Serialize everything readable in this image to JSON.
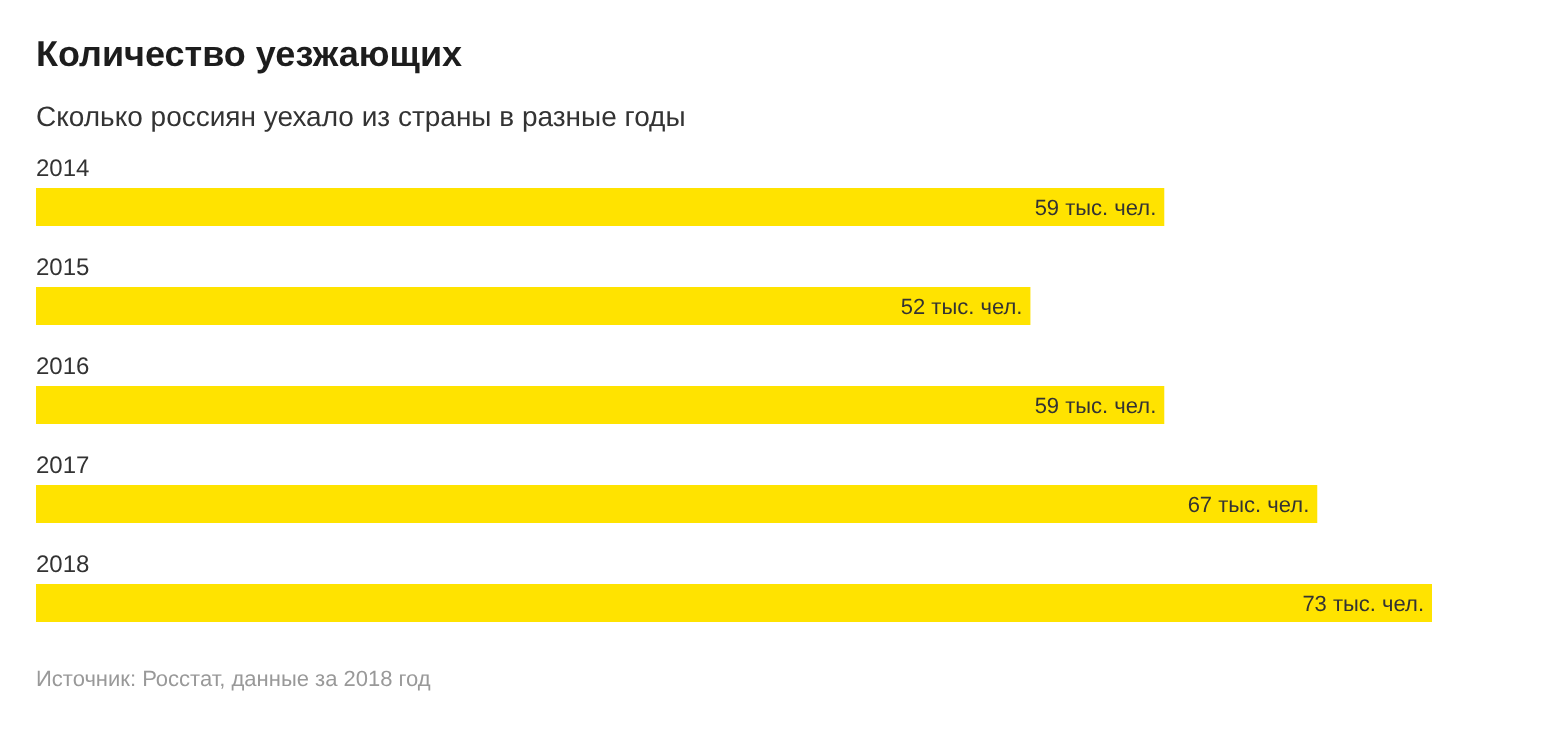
{
  "chart_data": {
    "type": "bar",
    "orientation": "horizontal",
    "title": "Количество уезжающих",
    "subtitle": "Сколько россиян уехало из страны в разные годы",
    "categories": [
      "2014",
      "2015",
      "2016",
      "2017",
      "2018"
    ],
    "values": [
      59,
      52,
      59,
      67,
      73
    ],
    "color": "#ffe300",
    "value_labels": [
      "59 тыс. чел.",
      "52 тыс. чел.",
      "59 тыс. чел.",
      "67 тыс. чел.",
      "73 тыс. чел."
    ],
    "annotations": [
      "Источник: Росстат, данные за 2018 год"
    ]
  }
}
